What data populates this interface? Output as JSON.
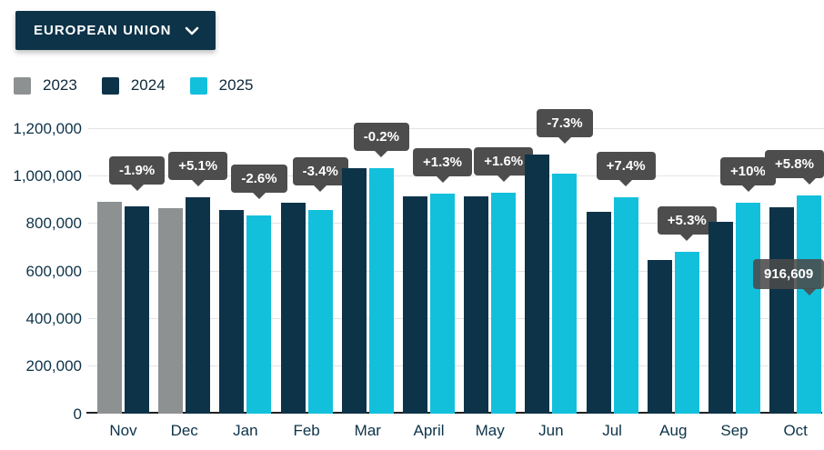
{
  "dropdown": {
    "label": "EUROPEAN UNION"
  },
  "legend": {
    "items": [
      {
        "label": "2023",
        "color": "#8e9192"
      },
      {
        "label": "2024",
        "color": "#0d3349"
      },
      {
        "label": "2025",
        "color": "#12c0dc"
      }
    ]
  },
  "chart_data": {
    "type": "bar",
    "title": "",
    "xlabel": "",
    "ylabel": "",
    "categories": [
      "Nov",
      "Dec",
      "Jan",
      "Feb",
      "Mar",
      "April",
      "May",
      "Jun",
      "Jul",
      "Aug",
      "Sep",
      "Oct"
    ],
    "series": [
      {
        "name": "2023",
        "color": "#8e9192",
        "values": [
          890000,
          865000,
          null,
          null,
          null,
          null,
          null,
          null,
          null,
          null,
          null,
          null
        ]
      },
      {
        "name": "2024",
        "color": "#0d3349",
        "values": [
          873000,
          909000,
          855000,
          885000,
          1033000,
          912000,
          912000,
          1090000,
          848000,
          645000,
          807000,
          866000
        ]
      },
      {
        "name": "2025",
        "color": "#12c0dc",
        "values": [
          null,
          null,
          833000,
          855000,
          1031000,
          924000,
          927000,
          1010000,
          911000,
          679000,
          888000,
          916609
        ]
      }
    ],
    "delta_labels": [
      "-1.9%",
      "+5.1%",
      "-2.6%",
      "-3.4%",
      "-0.2%",
      "+1.3%",
      "+1.6%",
      "-7.3%",
      "+7.4%",
      "+5.3%",
      "+10%",
      "+5.8%"
    ],
    "value_tooltip": {
      "text": "916,609",
      "category": "Oct",
      "series": "2025",
      "category_index": 11
    },
    "y_ticks": [
      {
        "value": 0,
        "label": "0"
      },
      {
        "value": 200000,
        "label": "200,000"
      },
      {
        "value": 400000,
        "label": "400,000"
      },
      {
        "value": 600000,
        "label": "600,000"
      },
      {
        "value": 800000,
        "label": "800,000"
      },
      {
        "value": 1000000,
        "label": "1,000,000"
      },
      {
        "value": 1200000,
        "label": "1,200,000"
      }
    ],
    "ylim": [
      0,
      1200000
    ],
    "grid": true,
    "legend_position": "top-left"
  },
  "colors": {
    "accent_navy": "#0d3349",
    "accent_cyan": "#12c0dc",
    "accent_gray": "#8e9192",
    "tooltip_bg": "#4d4d4d",
    "grid": "#e3e3e3",
    "axis_text": "#0d3349"
  }
}
